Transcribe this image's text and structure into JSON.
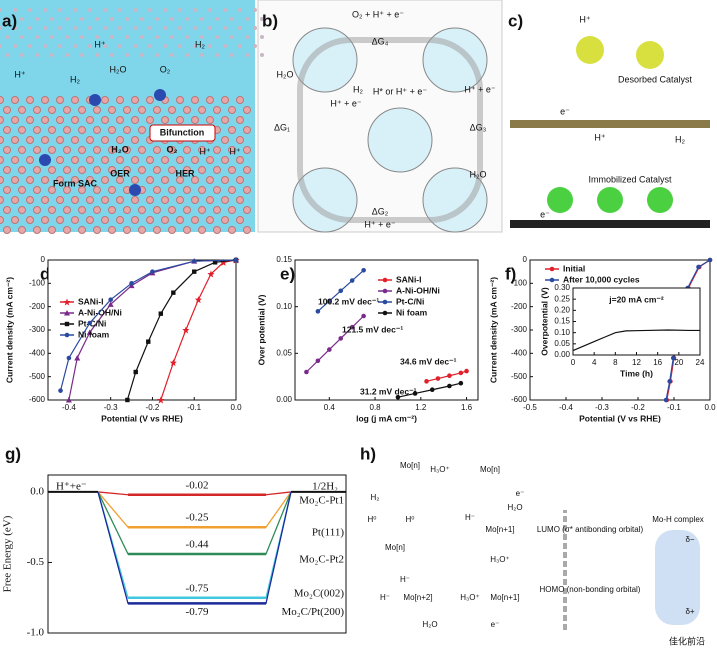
{
  "panel_labels": [
    "a)",
    "b)",
    "c)",
    "d)",
    "e)",
    "f)",
    "g)",
    "h)"
  ],
  "panel_a": {
    "texts": [
      "H⁺",
      "H₂",
      "H₂O",
      "O₂",
      "H⁺",
      "H₂",
      "Bifunction",
      "H₂O",
      "O₂",
      "H⁺",
      "H⁺",
      "OER",
      "HER",
      "Form SAC"
    ]
  },
  "panel_b": {
    "texts": [
      "O₂ + H⁺ + e⁻",
      "ΔG₄",
      "H₂O",
      "ΔG₁",
      "H₂",
      "H* or H⁺ + e⁻",
      "H⁺ + e⁻",
      "ΔG₃",
      "H⁺ + e⁻",
      "H₂O",
      "ΔG₂",
      "H⁺ + e⁻"
    ]
  },
  "panel_c": {
    "texts": [
      "H⁺",
      "Desorbed Catalyst",
      "e⁻",
      "H⁺",
      "H₂",
      "Immobilized Catalyst",
      "e⁻"
    ]
  },
  "panel_h": {
    "texts": [
      "H₃O⁺",
      "Mo[n]",
      "Mo[n]",
      "H₂",
      "e⁻",
      "H⁰",
      "H⁰",
      "H₂O",
      "Mo[n]",
      "H⁻",
      "Mo[n+1]",
      "H₃O⁺",
      "H⁻",
      "H⁻",
      "Mo[n+2]",
      "H₃O⁺",
      "Mo[n+1]",
      "H₂O",
      "e⁻",
      "Mo-H complex",
      "LUMO (σ* antibonding orbital)",
      "HOMO (non-bonding orbital)",
      "δ−",
      "δ+"
    ]
  },
  "watermark": "佳化前沿",
  "chart_data": [
    {
      "type": "line",
      "xlabel": "Potential (V vs RHE)",
      "ylabel": "Current density (mA cm⁻²)",
      "xlim": [
        -0.45,
        0
      ],
      "xticks": [
        -0.4,
        -0.3,
        -0.2,
        -0.1,
        {
          "value": 0,
          "label": "0.0"
        }
      ],
      "ylim": [
        -600,
        0
      ],
      "yticks": [
        0,
        -100,
        -200,
        -300,
        -400,
        -500,
        -600
      ],
      "series": [
        {
          "name": "SANi-I",
          "color": "#e0202a",
          "marker": "star",
          "x": [
            0,
            -0.03,
            -0.06,
            -0.09,
            -0.12,
            -0.15,
            -0.18
          ],
          "values": [
            0,
            -10,
            -60,
            -170,
            -300,
            -440,
            -600
          ]
        },
        {
          "name": "A-Ni-OH/Ni",
          "color": "#7a2a8a",
          "marker": "triangle",
          "x": [
            0,
            -0.1,
            -0.2,
            -0.25,
            -0.3,
            -0.35,
            -0.38,
            -0.4
          ],
          "values": [
            0,
            -5,
            -55,
            -110,
            -190,
            -310,
            -420,
            -600
          ]
        },
        {
          "name": "Pt-C/Ni",
          "color": "#111111",
          "marker": "square",
          "x": [
            0,
            -0.05,
            -0.1,
            -0.15,
            -0.18,
            -0.21,
            -0.24,
            -0.26
          ],
          "values": [
            0,
            -10,
            -50,
            -140,
            -230,
            -350,
            -480,
            -600
          ]
        },
        {
          "name": "Ni foam",
          "color": "#2a4aa0",
          "marker": "circle",
          "x": [
            0,
            -0.1,
            -0.2,
            -0.25,
            -0.3,
            -0.35,
            -0.4,
            -0.42
          ],
          "values": [
            0,
            -5,
            -50,
            -100,
            -170,
            -270,
            -420,
            -560
          ]
        }
      ]
    },
    {
      "type": "line",
      "xlabel": "log (j mA cm⁻²)",
      "ylabel": "Over potential (V)",
      "xlim": [
        0.1,
        1.7
      ],
      "xticks": [
        0.4,
        0.8,
        1.2,
        1.6
      ],
      "ylim": [
        0,
        0.15
      ],
      "yticks": [
        {
          "value": 0,
          "label": "0.00"
        },
        0.05,
        {
          "value": 0.1,
          "label": "0.10"
        },
        0.15
      ],
      "series": [
        {
          "name": "SANi-I",
          "color": "#e0202a",
          "marker": "circle",
          "x": [
            1.25,
            1.35,
            1.45,
            1.55,
            1.6
          ],
          "values": [
            0.02,
            0.023,
            0.026,
            0.029,
            0.031
          ]
        },
        {
          "name": "A-Ni-OH/Ni",
          "color": "#7a2a8a",
          "marker": "circle",
          "x": [
            0.2,
            0.3,
            0.4,
            0.5,
            0.6,
            0.7
          ],
          "values": [
            0.03,
            0.042,
            0.054,
            0.066,
            0.078,
            0.09
          ]
        },
        {
          "name": "Pt-C/Ni",
          "color": "#2a4aa0",
          "marker": "circle",
          "x": [
            0.3,
            0.4,
            0.5,
            0.6,
            0.7
          ],
          "values": [
            0.095,
            0.106,
            0.117,
            0.128,
            0.139
          ]
        },
        {
          "name": "Ni foam",
          "color": "#111111",
          "marker": "circle",
          "x": [
            1.0,
            1.15,
            1.3,
            1.45,
            1.55
          ],
          "values": [
            0.003,
            0.007,
            0.011,
            0.015,
            0.018
          ]
        }
      ],
      "annotations": [
        {
          "text": "100.2 mV dec⁻¹",
          "color": "#2a4aa0"
        },
        {
          "text": "121.5 mV dec⁻¹",
          "color": "#7a2a8a"
        },
        {
          "text": "34.6 mV dec⁻¹",
          "color": "#e0202a"
        },
        {
          "text": "31.2 mV dec⁻¹",
          "color": "#111111"
        }
      ]
    },
    {
      "type": "line",
      "xlabel": "Potential (V vs RHE)",
      "ylabel": "Current density (mA cm⁻²)",
      "xlim": [
        -0.5,
        0
      ],
      "xticks": [
        -0.5,
        -0.4,
        -0.3,
        -0.2,
        -0.1,
        {
          "value": 0,
          "label": "0.0"
        }
      ],
      "ylim": [
        -600,
        0
      ],
      "yticks": [
        0,
        -100,
        -200,
        -300,
        -400,
        -500,
        -600
      ],
      "series": [
        {
          "name": "Initial",
          "color": "#e0202a",
          "marker": "circle",
          "x": [
            0,
            -0.03,
            -0.06,
            -0.08,
            -0.1,
            -0.11,
            -0.12
          ],
          "values": [
            0,
            -30,
            -120,
            -250,
            -420,
            -520,
            -600
          ]
        },
        {
          "name": "After 10,000 cycles",
          "color": "#2a4aa0",
          "marker": "circle",
          "x": [
            0,
            -0.032,
            -0.062,
            -0.082,
            -0.102,
            -0.112,
            -0.122
          ],
          "values": [
            0,
            -30,
            -120,
            -250,
            -420,
            -520,
            -600
          ]
        }
      ]
    },
    {
      "type": "line",
      "xlabel": "Time (h)",
      "ylabel": "Overpotential (V)",
      "annotation": "j=20 mA cm⁻²",
      "xlim": [
        0,
        24
      ],
      "xticks": [
        0,
        4,
        8,
        12,
        16,
        20,
        24
      ],
      "ylim": [
        0,
        0.3
      ],
      "yticks": [
        {
          "value": 0,
          "label": "0.00"
        },
        0.05,
        {
          "value": 0.1,
          "label": "0.10"
        },
        0.15,
        {
          "value": 0.2,
          "label": "0.20"
        },
        0.25,
        {
          "value": 0.3,
          "label": "0.30"
        }
      ],
      "series": [
        {
          "color": "#111111",
          "x": [
            0,
            2,
            4,
            6,
            8,
            10,
            14,
            18,
            22,
            24
          ],
          "values": [
            0.02,
            0.04,
            0.06,
            0.08,
            0.1,
            0.108,
            0.11,
            0.112,
            0.11,
            0.11
          ]
        }
      ]
    },
    {
      "type": "energy",
      "ylabel": "Free Energy (eV)",
      "start_label": "H⁺+e⁻",
      "end_label": "1/2H₂",
      "ylim": [
        -1.0,
        0.12
      ],
      "yticks": [
        {
          "value": 0,
          "label": "0.0"
        },
        -0.5,
        {
          "value": -1,
          "label": "-1.0"
        }
      ],
      "series": [
        {
          "name": "Mo₂C-Pt1",
          "color": "#d62728",
          "values": [
            -0.02
          ]
        },
        {
          "name": "Pt(111)",
          "color": "#f0a030",
          "values": [
            -0.25
          ]
        },
        {
          "name": "Mo₂C-Pt2",
          "color": "#2e8b57",
          "values": [
            -0.44
          ]
        },
        {
          "name": "Mo₂C(002)",
          "color": "#40c8e0",
          "values": [
            -0.75
          ]
        },
        {
          "name": "Mo₂C/Pt(200)",
          "color": "#1a2a9a",
          "values": [
            -0.79
          ]
        }
      ]
    }
  ]
}
